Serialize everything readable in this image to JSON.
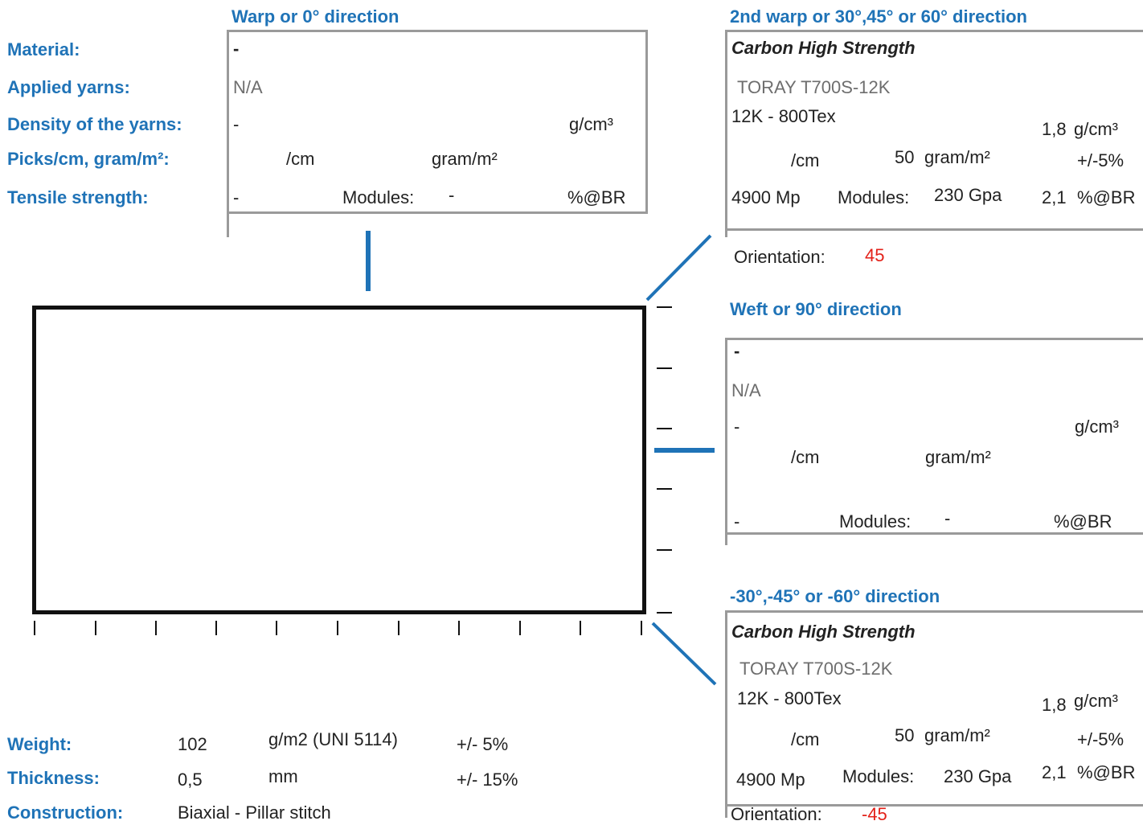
{
  "warp": {
    "header": "Warp or 0° direction",
    "material": "-",
    "applied_yarns": "N/A",
    "density": "-",
    "density_unit": "g/cm³",
    "picks_unit": "/cm",
    "gram_unit": "gram/m²",
    "tensile": "-",
    "modules_label": "Modules:",
    "modules": "-",
    "br_unit": "%@BR"
  },
  "labels": {
    "material": "Material:",
    "applied_yarns": "Applied yarns:",
    "density": "Density of the yarns:",
    "picks": "Picks/cm, gram/m²:",
    "tensile": "Tensile strength:"
  },
  "second_warp": {
    "header": "2nd warp or 30°,45° or 60° direction",
    "material": "Carbon High Strength",
    "applied_yarns": "TORAY T700S-12K",
    "yarn_spec": "12K - 800Tex",
    "density": "1,8",
    "density_unit": "g/cm³",
    "picks_unit": "/cm",
    "gram_value": "50",
    "gram_unit": "gram/m²",
    "tolerance": "+/-5%",
    "tensile": "4900 Mp",
    "modules_label": "Modules:",
    "modules": "230 Gpa",
    "br_value": "2,1",
    "br_unit": "%@BR",
    "orientation_label": "Orientation:",
    "orientation": "45"
  },
  "weft": {
    "header": "Weft or 90° direction",
    "material": "-",
    "applied_yarns": "N/A",
    "density": "-",
    "density_unit": "g/cm³",
    "picks_unit": "/cm",
    "gram_unit": "gram/m²",
    "tensile": "-",
    "modules_label": "Modules:",
    "modules": "-",
    "br_unit": "%@BR"
  },
  "neg_direction": {
    "header": "-30°,-45° or -60° direction",
    "material": "Carbon High Strength",
    "applied_yarns": "TORAY T700S-12K",
    "yarn_spec": "12K - 800Tex",
    "density": "1,8",
    "density_unit": "g/cm³",
    "picks_unit": "/cm",
    "gram_value": "50",
    "gram_unit": "gram/m²",
    "tolerance": "+/-5%",
    "tensile": "4900 Mp",
    "modules_label": "Modules:",
    "modules": "230 Gpa",
    "br_value": "2,1",
    "br_unit": "%@BR",
    "orientation_label": "Orientation:",
    "orientation": "-45"
  },
  "summary": {
    "weight_label": "Weight:",
    "weight_value": "102",
    "weight_unit": "g/m2 (UNI 5114)",
    "weight_tol": "+/- 5%",
    "thickness_label": "Thickness:",
    "thickness_value": "0,5",
    "thickness_unit": "mm",
    "thickness_tol": "+/- 15%",
    "construction_label": "Construction:",
    "construction_value": "Biaxial - Pillar stitch"
  },
  "colors": {
    "accent": "#1f73b7",
    "orientation": "#e32119",
    "frame": "#9a9a9a"
  }
}
